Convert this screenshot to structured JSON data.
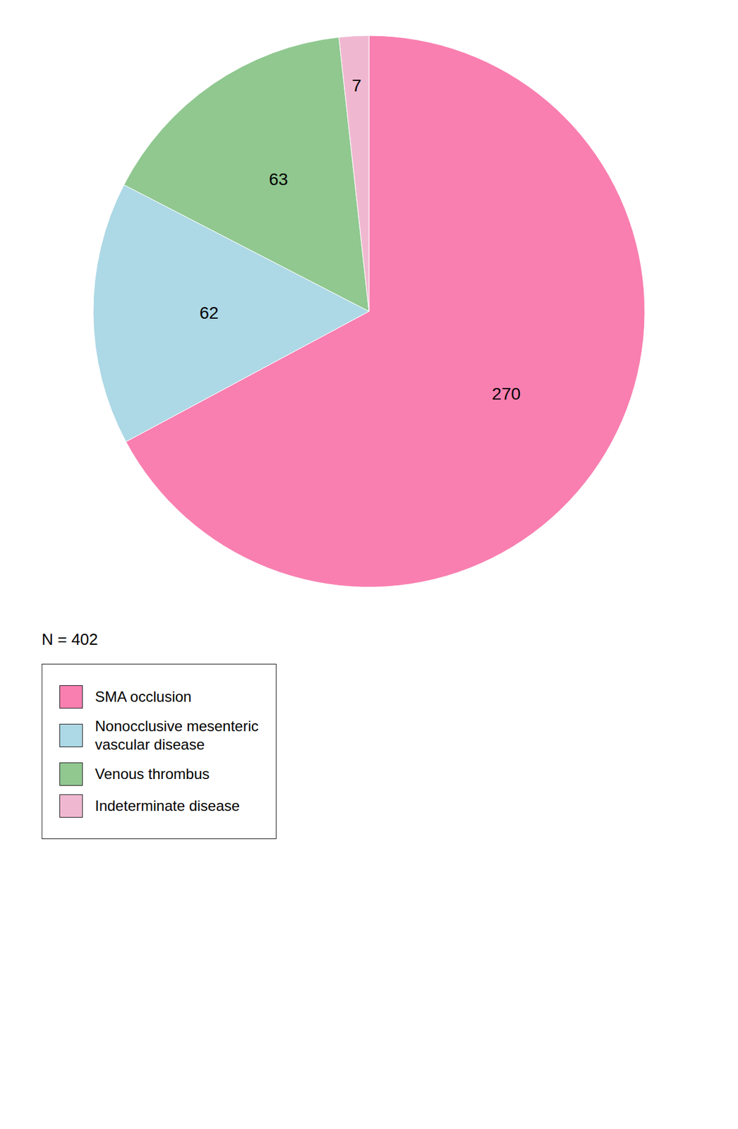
{
  "chart_data": {
    "type": "pie",
    "categories": [
      "SMA occlusion",
      "Nonocclusive mesenteric\nvascular disease",
      "Venous thrombus",
      "Indeterminate disease"
    ],
    "values": [
      270,
      62,
      63,
      7
    ],
    "colors": [
      "#F97FB0",
      "#ADD8E6",
      "#90C890",
      "#F0B8D0"
    ],
    "data_labels": true,
    "annotations": [
      "N = 402"
    ],
    "legend": "bottom"
  }
}
